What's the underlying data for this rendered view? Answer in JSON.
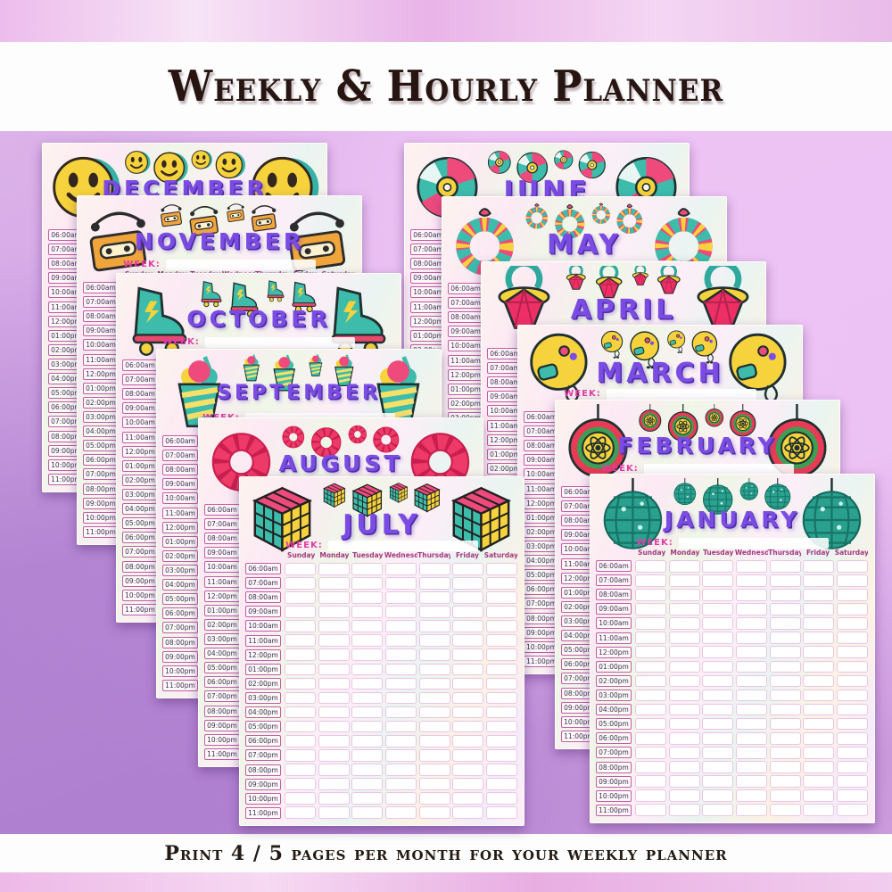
{
  "header": {
    "title": "Weekly & Hourly Planner"
  },
  "footer": {
    "caption": "Print 4 / 5 pages per month for your weekly planner"
  },
  "planner": {
    "week_label": "WEEK:",
    "days": [
      "Sunday",
      "Monday",
      "Tuesday",
      "Wednesday",
      "Thursday",
      "Friday",
      "Saturday"
    ],
    "times": [
      "06:00am",
      "07:00am",
      "08:00am",
      "09:00am",
      "10:00am",
      "11:00am",
      "12:00pm",
      "01:00pm",
      "02:00pm",
      "03:00pm",
      "04:00pm",
      "05:00pm",
      "06:00pm",
      "07:00pm",
      "08:00pm",
      "09:00pm",
      "10:00pm",
      "11:00pm"
    ],
    "months": [
      {
        "name": "DECEMBER",
        "icon": "smiley-face-icon"
      },
      {
        "name": "NOVEMBER",
        "icon": "cassette-headphones-icon"
      },
      {
        "name": "OCTOBER",
        "icon": "roller-skate-icon"
      },
      {
        "name": "SEPTEMBER",
        "icon": "ice-cream-swirl-icon"
      },
      {
        "name": "AUGUST",
        "icon": "scrunchie-icon"
      },
      {
        "name": "JULY",
        "icon": "rubiks-cube-icon"
      },
      {
        "name": "JUNE",
        "icon": "cd-disc-icon"
      },
      {
        "name": "MAY",
        "icon": "friendship-bracelet-icon"
      },
      {
        "name": "APRIL",
        "icon": "ring-pop-icon"
      },
      {
        "name": "MARCH",
        "icon": "cd-player-icon"
      },
      {
        "name": "FEBRUARY",
        "icon": "yoyo-icon"
      },
      {
        "name": "JANUARY",
        "icon": "disco-ball-icon"
      }
    ],
    "colors": {
      "month_title_purple": "#7b4ce3",
      "week_label_magenta": "#e23ca6",
      "day_header_magenta": "#a23a80",
      "time_border_pink": "#c45ba5",
      "cell_border_pink": "#eac6e5",
      "background_purple": "#cb9bdd"
    }
  }
}
